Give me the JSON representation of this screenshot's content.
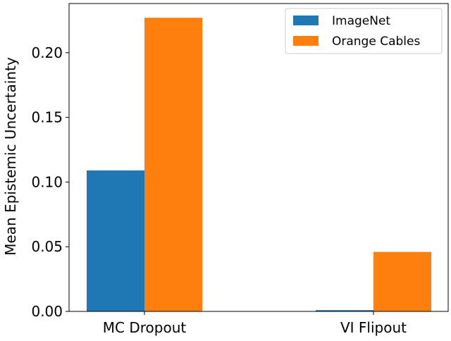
{
  "chart_data": {
    "type": "bar",
    "categories": [
      "MC Dropout",
      "VI Flipout"
    ],
    "series": [
      {
        "name": "ImageNet",
        "values": [
          0.109,
          0.001
        ],
        "color": "#1f77b4"
      },
      {
        "name": "Orange Cables",
        "values": [
          0.227,
          0.046
        ],
        "color": "#ff7f0e"
      }
    ],
    "title": "",
    "xlabel": "",
    "ylabel": "Mean Epistemic Uncertainty",
    "ylim": [
      0,
      0.238
    ],
    "yticks": [
      "0.00",
      "0.05",
      "0.10",
      "0.15",
      "0.20"
    ],
    "grid": false,
    "legend": "top-right"
  }
}
